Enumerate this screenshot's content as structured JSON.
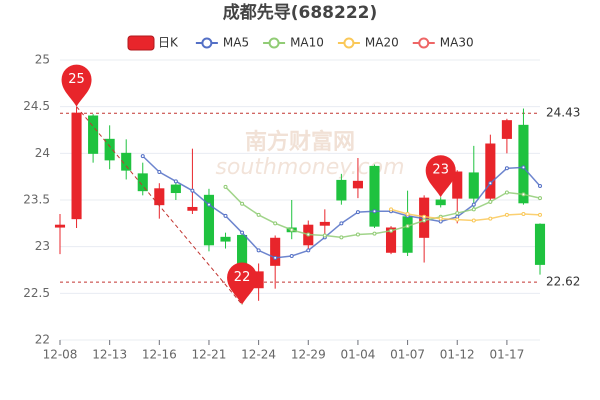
{
  "chart_data": {
    "type": "candlestick",
    "title": "成都先导(688222)",
    "categories": [
      "12-08",
      null,
      null,
      "12-13",
      null,
      null,
      "12-16",
      null,
      null,
      "12-21",
      null,
      null,
      "12-24",
      null,
      null,
      "12-29",
      null,
      null,
      "01-04",
      null,
      null,
      "01-07",
      null,
      null,
      "01-12",
      null,
      null,
      "01-17",
      null,
      null
    ],
    "candles": {
      "name": "日K",
      "up_color": "#e8252b",
      "down_color": "#1fc23f",
      "open": [
        23.21,
        23.3,
        24.4,
        24.15,
        24.0,
        23.78,
        23.45,
        23.66,
        23.39,
        23.55,
        23.1,
        23.12,
        22.56,
        22.8,
        23.2,
        23.02,
        23.23,
        23.71,
        23.63,
        23.86,
        22.94,
        23.32,
        23.1,
        23.5,
        23.52,
        23.79,
        23.52,
        24.16,
        24.3,
        23.24
      ],
      "high": [
        23.35,
        24.5,
        24.42,
        24.3,
        24.15,
        23.9,
        23.68,
        23.72,
        24.05,
        23.62,
        23.15,
        23.15,
        22.82,
        23.12,
        23.5,
        23.28,
        23.4,
        23.78,
        23.95,
        23.88,
        23.22,
        23.6,
        23.55,
        23.53,
        23.82,
        24.08,
        24.2,
        24.37,
        24.48,
        23.25
      ],
      "low": [
        22.92,
        23.2,
        23.9,
        23.83,
        23.72,
        23.55,
        23.3,
        23.5,
        23.35,
        22.95,
        22.98,
        22.38,
        22.42,
        22.55,
        23.08,
        22.95,
        23.1,
        23.45,
        23.52,
        23.2,
        22.92,
        22.9,
        22.83,
        23.42,
        23.25,
        23.4,
        23.46,
        24.0,
        23.45,
        22.7
      ],
      "close": [
        23.23,
        24.43,
        24.0,
        23.93,
        23.82,
        23.6,
        23.62,
        23.58,
        23.42,
        23.02,
        23.06,
        22.72,
        22.73,
        23.09,
        23.16,
        23.23,
        23.26,
        23.5,
        23.7,
        23.22,
        23.2,
        22.94,
        23.52,
        23.45,
        23.8,
        23.52,
        24.1,
        24.35,
        23.47,
        22.81
      ]
    },
    "lines": [
      {
        "name": "MA5",
        "color": "#5470c6",
        "values": [
          null,
          null,
          null,
          null,
          null,
          23.97,
          23.8,
          23.7,
          23.6,
          23.45,
          23.33,
          23.15,
          22.96,
          22.88,
          22.9,
          22.96,
          23.1,
          23.25,
          23.37,
          23.38,
          23.38,
          23.33,
          23.3,
          23.27,
          23.32,
          23.45,
          23.68,
          23.84,
          23.85,
          23.65
        ]
      },
      {
        "name": "MA10",
        "color": "#91cc75",
        "values": [
          null,
          null,
          null,
          null,
          null,
          null,
          null,
          null,
          null,
          null,
          23.64,
          23.46,
          23.34,
          23.25,
          23.18,
          23.13,
          23.12,
          23.1,
          23.13,
          23.14,
          23.17,
          23.22,
          23.28,
          23.32,
          23.36,
          23.4,
          23.48,
          23.58,
          23.56,
          23.52
        ]
      },
      {
        "name": "MA20",
        "color": "#fac858",
        "values": [
          null,
          null,
          null,
          null,
          null,
          null,
          null,
          null,
          null,
          null,
          null,
          null,
          null,
          null,
          null,
          null,
          null,
          null,
          null,
          null,
          23.4,
          23.35,
          23.32,
          23.3,
          23.29,
          23.28,
          23.3,
          23.34,
          23.35,
          23.34
        ]
      },
      {
        "name": "MA30",
        "color": "#ee6666",
        "values": [
          null,
          null,
          null,
          null,
          null,
          null,
          null,
          null,
          null,
          null,
          null,
          null,
          null,
          null,
          null,
          null,
          null,
          null,
          null,
          null,
          null,
          null,
          null,
          null,
          null,
          null,
          null,
          null,
          null,
          null
        ]
      }
    ],
    "reference_lines": [
      24.43,
      22.62
    ],
    "markers": [
      {
        "label": "25",
        "candle": 1,
        "at": "high"
      },
      {
        "label": "22",
        "candle": 11,
        "at": "low"
      },
      {
        "label": "23",
        "candle": 23,
        "at": "high"
      }
    ],
    "watermark": "南方财富网",
    "watermark_sub": "southmoney.com",
    "ylim": [
      22,
      25
    ],
    "yticks": [
      22,
      22.5,
      23,
      23.5,
      24,
      24.5,
      25
    ],
    "grid": true
  }
}
